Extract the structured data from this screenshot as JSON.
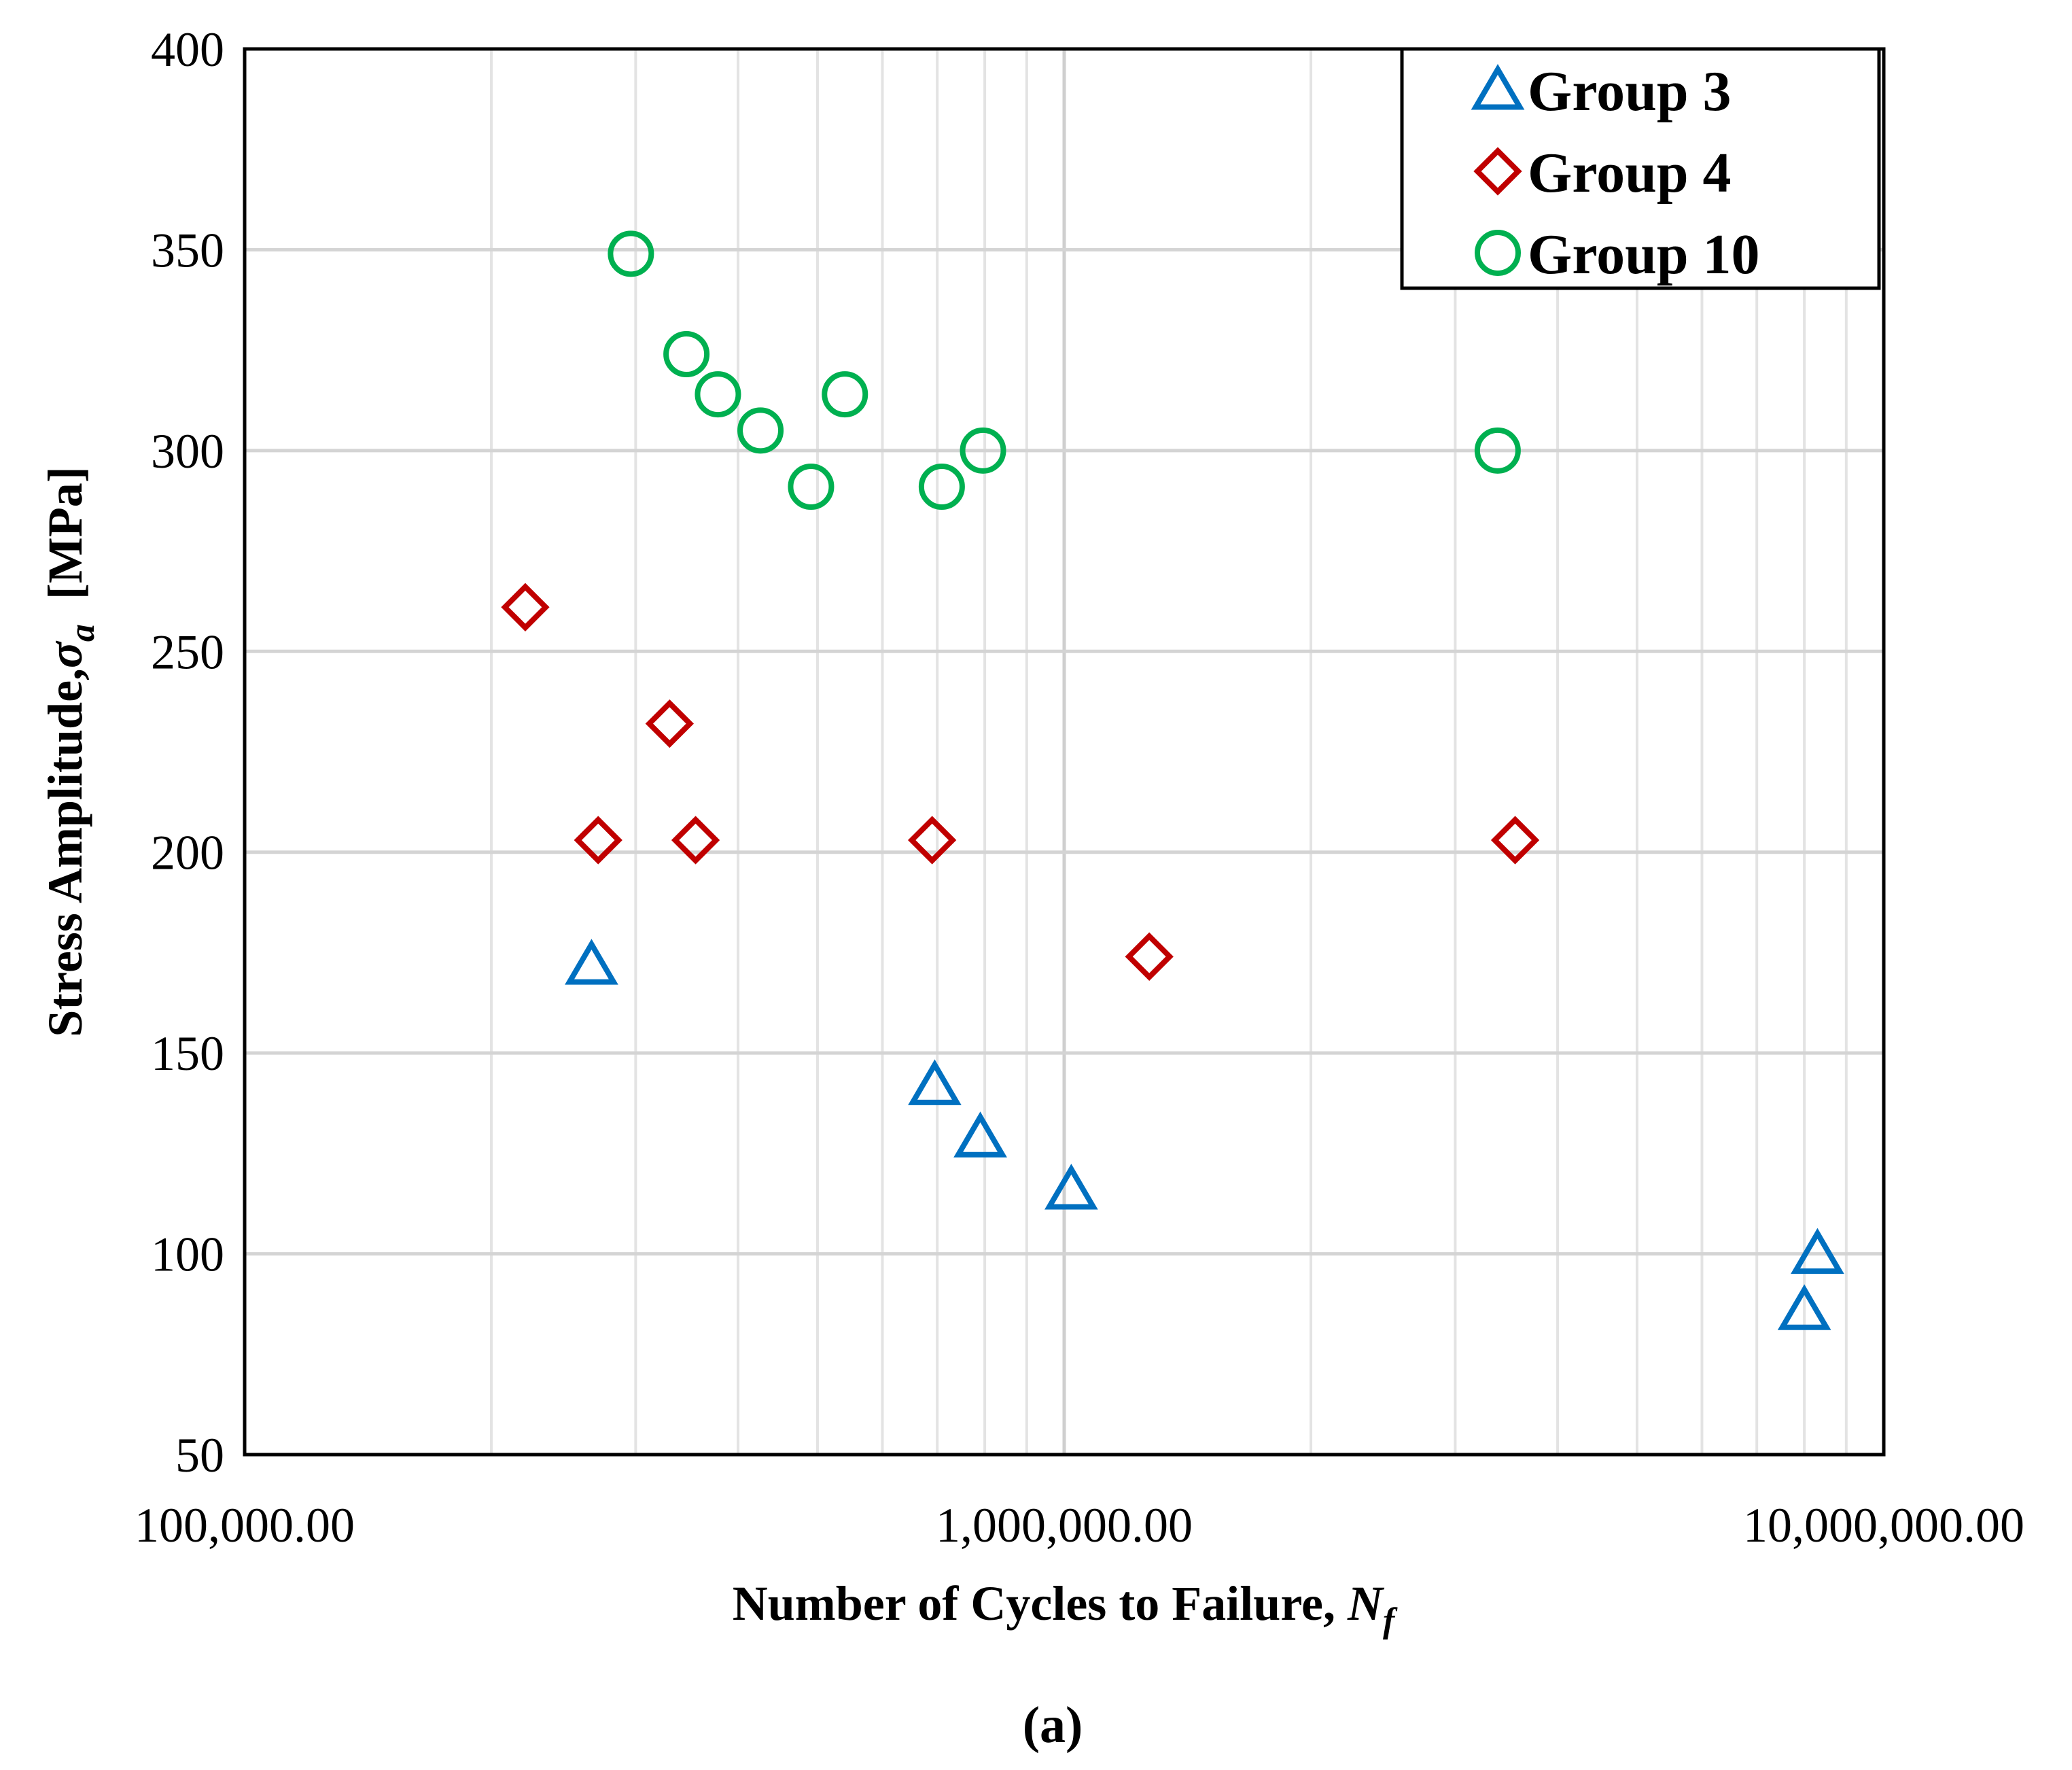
{
  "chart_data": {
    "type": "scatter",
    "title": "",
    "xlabel": "Number of Cycles to Failure, ",
    "xlabel_italic": "N",
    "xlabel_sub": "f",
    "ylabel": "Stress Amplitude,",
    "ylabel_symbol": "σ",
    "ylabel_sub": "a",
    "ylabel_unit": "[MPa]",
    "x_scale": "log",
    "xlim": [
      100000,
      10000000
    ],
    "ylim": [
      50,
      400
    ],
    "x_ticks": [
      100000,
      1000000,
      10000000
    ],
    "x_tick_labels": [
      "100,000.00",
      "1,000,000.00",
      "10,000,000.00"
    ],
    "y_ticks": [
      50,
      100,
      150,
      200,
      250,
      300,
      350,
      400
    ],
    "y_tick_labels": [
      "50",
      "100",
      "150",
      "200",
      "250",
      "300",
      "350",
      "400"
    ],
    "grid": true,
    "legend_position": "top-right",
    "caption": "(a)",
    "series": [
      {
        "name": "Group 3",
        "marker": "triangle",
        "color": "#0070C0",
        "x": [
          265000,
          695000,
          790000,
          1020000,
          8000000,
          8300000
        ],
        "y": [
          172,
          142,
          129,
          116,
          86,
          100
        ]
      },
      {
        "name": "Group 4",
        "marker": "diamond",
        "color": "#C00000",
        "x": [
          220000,
          270000,
          330000,
          355000,
          690000,
          1270000,
          3550000
        ],
        "y": [
          261,
          203,
          232,
          203,
          203,
          174,
          203
        ]
      },
      {
        "name": "Group 10",
        "marker": "circle",
        "color": "#00B050",
        "x": [
          296000,
          346000,
          378000,
          426000,
          491000,
          540000,
          709000,
          796000,
          3380000
        ],
        "y": [
          349,
          324,
          314,
          305,
          291,
          314,
          291,
          300,
          300
        ]
      }
    ]
  }
}
